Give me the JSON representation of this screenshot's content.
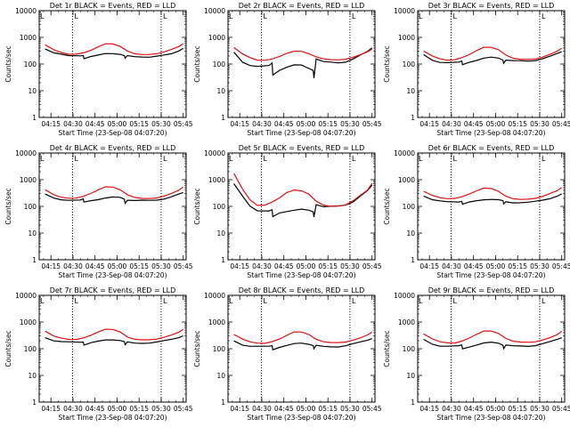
{
  "chart_data": [
    {
      "type": "line",
      "title": "Det 1r BLACK = Events, RED = LLD",
      "xlabel": "Start Time (23-Sep-08 04:07:20)",
      "ylabel": "Counts/sec",
      "yscale": "log",
      "ylim": [
        1,
        10000
      ],
      "yticks": [
        "1",
        "10",
        "100",
        "1000",
        "10000"
      ],
      "xticks": [
        "04:15",
        "04:30",
        "04:45",
        "05:00",
        "05:15",
        "05:30",
        "05:45"
      ],
      "markers": [
        "L",
        "L"
      ],
      "series": [
        {
          "color": "#000000",
          "x_min": [
            4,
            10,
            15,
            20,
            28,
            30,
            30.5,
            35,
            40,
            45,
            50,
            55,
            58,
            58.5,
            60,
            65,
            70,
            75,
            80,
            85,
            90,
            95,
            98
          ],
          "y": [
            380,
            270,
            230,
            200,
            200,
            215,
            165,
            190,
            210,
            240,
            250,
            240,
            210,
            160,
            200,
            190,
            190,
            185,
            195,
            210,
            240,
            320,
            400
          ]
        },
        {
          "color": "#e01010",
          "x_min": [
            4,
            10,
            15,
            20,
            25,
            30,
            35,
            40,
            45,
            50,
            55,
            60,
            65,
            70,
            75,
            80,
            85,
            90,
            95,
            98
          ],
          "y": [
            520,
            330,
            260,
            225,
            230,
            260,
            330,
            450,
            600,
            590,
            470,
            310,
            240,
            220,
            220,
            235,
            280,
            350,
            460,
            600
          ]
        }
      ]
    },
    {
      "type": "line",
      "title": "Det 2r BLACK = Events, RED = LLD",
      "xlabel": "Start Time (23-Sep-08 04:07:20)",
      "ylabel": "Counts/sec",
      "yscale": "log",
      "ylim": [
        1,
        10000
      ],
      "yticks": [
        "1",
        "10",
        "100",
        "1000",
        "10000"
      ],
      "xticks": [
        "04:15",
        "04:30",
        "04:45",
        "05:00",
        "05:15",
        "05:30",
        "05:45"
      ],
      "markers": [
        "L",
        "L"
      ],
      "series": [
        {
          "color": "#000000",
          "x_min": [
            4,
            10,
            15,
            20,
            28,
            30,
            30.5,
            35,
            40,
            45,
            50,
            55,
            58,
            58.5,
            60,
            65,
            70,
            75,
            80,
            85,
            90,
            95,
            98
          ],
          "y": [
            280,
            120,
            90,
            80,
            85,
            110,
            40,
            60,
            75,
            90,
            90,
            70,
            60,
            30,
            150,
            120,
            120,
            115,
            120,
            150,
            210,
            300,
            420
          ]
        },
        {
          "color": "#e01010",
          "x_min": [
            4,
            10,
            15,
            20,
            25,
            30,
            35,
            40,
            45,
            50,
            55,
            60,
            65,
            70,
            75,
            80,
            85,
            90,
            95,
            98
          ],
          "y": [
            400,
            230,
            170,
            140,
            140,
            160,
            200,
            260,
            310,
            300,
            240,
            180,
            150,
            140,
            140,
            150,
            180,
            230,
            300,
            380
          ]
        }
      ]
    },
    {
      "type": "line",
      "title": "Det 3r BLACK = Events, RED = LLD",
      "xlabel": "Start Time (23-Sep-08 04:07:20)",
      "ylabel": "Counts/sec",
      "yscale": "log",
      "ylim": [
        1,
        10000
      ],
      "yticks": [
        "1",
        "10",
        "100",
        "1000",
        "10000"
      ],
      "xticks": [
        "04:15",
        "04:30",
        "04:45",
        "05:00",
        "05:15",
        "05:30",
        "05:45"
      ],
      "markers": [
        "L",
        "L"
      ],
      "series": [
        {
          "color": "#000000",
          "x_min": [
            4,
            10,
            15,
            20,
            28,
            30,
            30.5,
            35,
            40,
            45,
            50,
            55,
            58,
            58.5,
            60,
            65,
            70,
            75,
            80,
            85,
            90,
            95,
            98
          ],
          "y": [
            220,
            140,
            120,
            115,
            115,
            125,
            95,
            120,
            140,
            165,
            175,
            165,
            145,
            110,
            140,
            130,
            130,
            130,
            140,
            160,
            190,
            240,
            290
          ]
        },
        {
          "color": "#e01010",
          "x_min": [
            4,
            10,
            15,
            20,
            25,
            30,
            35,
            40,
            45,
            50,
            55,
            60,
            65,
            70,
            75,
            80,
            85,
            90,
            95,
            98
          ],
          "y": [
            300,
            200,
            160,
            145,
            150,
            180,
            230,
            320,
            420,
            410,
            330,
            210,
            160,
            150,
            150,
            160,
            190,
            240,
            310,
            400
          ]
        }
      ]
    },
    {
      "type": "line",
      "title": "Det 4r BLACK = Events, RED = LLD",
      "xlabel": "Start Time (23-Sep-08 04:07:20)",
      "ylabel": "Counts/sec",
      "yscale": "log",
      "ylim": [
        1,
        10000
      ],
      "yticks": [
        "1",
        "10",
        "100",
        "1000",
        "10000"
      ],
      "xticks": [
        "04:15",
        "04:30",
        "04:45",
        "05:00",
        "05:15",
        "05:30",
        "05:45"
      ],
      "markers": [
        "L",
        "L"
      ],
      "series": [
        {
          "color": "#000000",
          "x_min": [
            4,
            10,
            15,
            20,
            28,
            30,
            30.5,
            35,
            40,
            45,
            50,
            55,
            58,
            58.5,
            60,
            65,
            70,
            75,
            80,
            85,
            90,
            95,
            98
          ],
          "y": [
            280,
            200,
            180,
            175,
            175,
            185,
            140,
            165,
            185,
            210,
            220,
            210,
            185,
            135,
            175,
            165,
            165,
            165,
            175,
            195,
            230,
            280,
            320
          ]
        },
        {
          "color": "#e01010",
          "x_min": [
            4,
            10,
            15,
            20,
            25,
            30,
            35,
            40,
            45,
            50,
            55,
            60,
            65,
            70,
            75,
            80,
            85,
            90,
            95,
            98
          ],
          "y": [
            430,
            280,
            230,
            210,
            210,
            240,
            300,
            400,
            520,
            510,
            410,
            270,
            220,
            205,
            205,
            215,
            250,
            310,
            400,
            520
          ]
        }
      ]
    },
    {
      "type": "line",
      "title": "Det 5r BLACK = Events, RED = LLD",
      "xlabel": "Start Time (23-Sep-08 04:07:20)",
      "ylabel": "Counts/sec",
      "yscale": "log",
      "ylim": [
        1,
        10000
      ],
      "yticks": [
        "1",
        "10",
        "100",
        "1000",
        "10000"
      ],
      "xticks": [
        "04:15",
        "04:30",
        "04:45",
        "05:00",
        "05:15",
        "05:30",
        "05:45"
      ],
      "markers": [
        "L",
        "L"
      ],
      "series": [
        {
          "color": "#000000",
          "x_min": [
            4,
            10,
            15,
            20,
            28,
            30,
            30.5,
            35,
            40,
            45,
            50,
            55,
            58,
            58.5,
            60,
            65,
            70,
            75,
            80,
            85,
            90,
            95,
            98
          ],
          "y": [
            700,
            230,
            100,
            70,
            70,
            75,
            40,
            55,
            65,
            75,
            80,
            70,
            60,
            40,
            120,
            100,
            100,
            100,
            110,
            150,
            250,
            400,
            600
          ]
        },
        {
          "color": "#e01010",
          "x_min": [
            4,
            10,
            15,
            20,
            25,
            30,
            35,
            40,
            45,
            50,
            55,
            60,
            65,
            70,
            75,
            80,
            85,
            90,
            95,
            98
          ],
          "y": [
            1800,
            450,
            180,
            110,
            110,
            140,
            200,
            320,
            400,
            380,
            290,
            160,
            115,
            105,
            105,
            115,
            160,
            250,
            400,
            700
          ]
        }
      ]
    },
    {
      "type": "line",
      "title": "Det 6r BLACK = Events, RED = LLD",
      "xlabel": "Start Time (23-Sep-08 04:07:20)",
      "ylabel": "Counts/sec",
      "yscale": "log",
      "ylim": [
        1,
        10000
      ],
      "yticks": [
        "1",
        "10",
        "100",
        "1000",
        "10000"
      ],
      "xticks": [
        "04:15",
        "04:30",
        "04:45",
        "05:00",
        "05:15",
        "05:30",
        "05:45"
      ],
      "markers": [
        "L",
        "L"
      ],
      "series": [
        {
          "color": "#000000",
          "x_min": [
            4,
            10,
            15,
            20,
            28,
            30,
            30.5,
            35,
            40,
            45,
            50,
            55,
            58,
            58.5,
            60,
            65,
            70,
            75,
            80,
            85,
            90,
            95,
            98
          ],
          "y": [
            250,
            175,
            155,
            150,
            150,
            160,
            120,
            140,
            160,
            180,
            190,
            180,
            160,
            120,
            150,
            140,
            140,
            140,
            150,
            170,
            200,
            250,
            290
          ]
        },
        {
          "color": "#e01010",
          "x_min": [
            4,
            10,
            15,
            20,
            25,
            30,
            35,
            40,
            45,
            50,
            55,
            60,
            65,
            70,
            75,
            80,
            85,
            90,
            95,
            98
          ],
          "y": [
            380,
            260,
            210,
            190,
            190,
            220,
            280,
            380,
            490,
            480,
            380,
            250,
            200,
            185,
            185,
            195,
            230,
            290,
            380,
            500
          ]
        }
      ]
    },
    {
      "type": "line",
      "title": "Det 7r BLACK = Events, RED = LLD",
      "xlabel": "Start Time (23-Sep-08 04:07:20)",
      "ylabel": "Counts/sec",
      "yscale": "log",
      "ylim": [
        1,
        10000
      ],
      "yticks": [
        "1",
        "10",
        "100",
        "1000",
        "10000"
      ],
      "xticks": [
        "04:15",
        "04:30",
        "04:45",
        "05:00",
        "05:15",
        "05:30",
        "05:45"
      ],
      "markers": [
        "L",
        "L"
      ],
      "series": [
        {
          "color": "#000000",
          "x_min": [
            4,
            10,
            15,
            20,
            28,
            30,
            30.5,
            35,
            40,
            45,
            50,
            55,
            58,
            58.5,
            60,
            65,
            70,
            75,
            80,
            85,
            90,
            95,
            98
          ],
          "y": [
            270,
            200,
            180,
            175,
            175,
            185,
            140,
            165,
            185,
            210,
            220,
            210,
            185,
            135,
            175,
            165,
            165,
            165,
            175,
            195,
            225,
            270,
            310
          ]
        },
        {
          "color": "#e01010",
          "x_min": [
            4,
            10,
            15,
            20,
            25,
            30,
            35,
            40,
            45,
            50,
            55,
            60,
            65,
            70,
            75,
            80,
            85,
            90,
            95,
            98
          ],
          "y": [
            450,
            290,
            240,
            215,
            215,
            250,
            320,
            430,
            560,
            550,
            440,
            280,
            225,
            210,
            210,
            220,
            260,
            320,
            420,
            540
          ]
        }
      ]
    },
    {
      "type": "line",
      "title": "Det 8r BLACK = Events, RED = LLD",
      "xlabel": "Start Time (23-Sep-08 04:07:20)",
      "ylabel": "Counts/sec",
      "yscale": "log",
      "ylim": [
        1,
        10000
      ],
      "yticks": [
        "1",
        "10",
        "100",
        "1000",
        "10000"
      ],
      "xticks": [
        "04:15",
        "04:30",
        "04:45",
        "05:00",
        "05:15",
        "05:30",
        "05:45"
      ],
      "markers": [
        "L",
        "L"
      ],
      "series": [
        {
          "color": "#000000",
          "x_min": [
            4,
            10,
            15,
            20,
            28,
            30,
            30.5,
            35,
            40,
            45,
            50,
            55,
            58,
            58.5,
            60,
            65,
            70,
            75,
            80,
            85,
            90,
            95,
            98
          ],
          "y": [
            200,
            140,
            125,
            120,
            120,
            130,
            95,
            115,
            130,
            150,
            160,
            150,
            135,
            100,
            130,
            120,
            120,
            120,
            130,
            150,
            175,
            210,
            250
          ]
        },
        {
          "color": "#e01010",
          "x_min": [
            4,
            10,
            15,
            20,
            25,
            30,
            35,
            40,
            45,
            50,
            55,
            60,
            65,
            70,
            75,
            80,
            85,
            90,
            95,
            98
          ],
          "y": [
            330,
            220,
            175,
            160,
            160,
            190,
            240,
            330,
            440,
            430,
            340,
            220,
            175,
            165,
            165,
            175,
            210,
            260,
            340,
            440
          ]
        }
      ]
    },
    {
      "type": "line",
      "title": "Det 9r BLACK = Events, RED = LLD",
      "xlabel": "Start Time (23-Sep-08 04:07:20)",
      "ylabel": "Counts/sec",
      "yscale": "log",
      "ylim": [
        1,
        10000
      ],
      "yticks": [
        "1",
        "10",
        "100",
        "1000",
        "10000"
      ],
      "xticks": [
        "04:15",
        "04:30",
        "04:45",
        "05:00",
        "05:15",
        "05:30",
        "05:45"
      ],
      "markers": [
        "L",
        "L"
      ],
      "series": [
        {
          "color": "#000000",
          "x_min": [
            4,
            10,
            15,
            20,
            28,
            30,
            30.5,
            35,
            40,
            45,
            50,
            55,
            58,
            58.5,
            60,
            65,
            70,
            75,
            80,
            85,
            90,
            95,
            98
          ],
          "y": [
            220,
            150,
            130,
            125,
            125,
            135,
            100,
            120,
            140,
            160,
            170,
            160,
            140,
            105,
            135,
            125,
            125,
            125,
            135,
            155,
            180,
            220,
            260
          ]
        },
        {
          "color": "#e01010",
          "x_min": [
            4,
            10,
            15,
            20,
            25,
            30,
            35,
            40,
            45,
            50,
            55,
            60,
            65,
            70,
            75,
            80,
            85,
            90,
            95,
            98
          ],
          "y": [
            350,
            230,
            185,
            170,
            170,
            200,
            260,
            350,
            460,
            450,
            360,
            235,
            185,
            175,
            175,
            185,
            220,
            270,
            350,
            460
          ]
        }
      ]
    }
  ]
}
